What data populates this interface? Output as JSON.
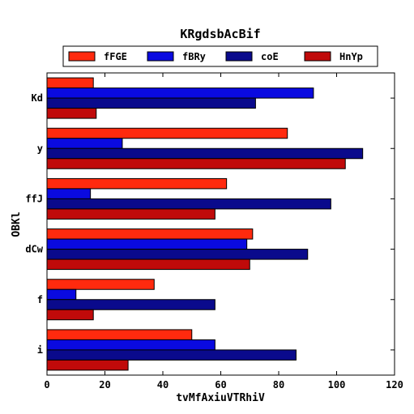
{
  "chart_data": {
    "type": "bar",
    "orientation": "horizontal",
    "title": "KRgdsbAcBif",
    "xlabel": "tvMfAxiuVTRhiV",
    "ylabel": "OBKl",
    "categories": [
      "i",
      "f",
      "dCw",
      "ffJ",
      "y",
      "Kd"
    ],
    "xlim": [
      0,
      120
    ],
    "xticks": [
      0,
      20,
      40,
      60,
      80,
      100,
      120
    ],
    "grid": false,
    "legend_position": "top",
    "series": [
      {
        "name": "fFGE",
        "color": "#ff2a0e",
        "values": [
          50,
          37,
          71,
          62,
          83,
          16
        ]
      },
      {
        "name": "fBRy",
        "color": "#0a0ae0",
        "values": [
          58,
          10,
          69,
          15,
          26,
          92
        ]
      },
      {
        "name": "coE",
        "color": "#0a0a8c",
        "values": [
          86,
          58,
          90,
          98,
          109,
          72
        ]
      },
      {
        "name": "HnYp",
        "color": "#c00a0a",
        "values": [
          28,
          16,
          70,
          58,
          103,
          17
        ]
      }
    ]
  }
}
